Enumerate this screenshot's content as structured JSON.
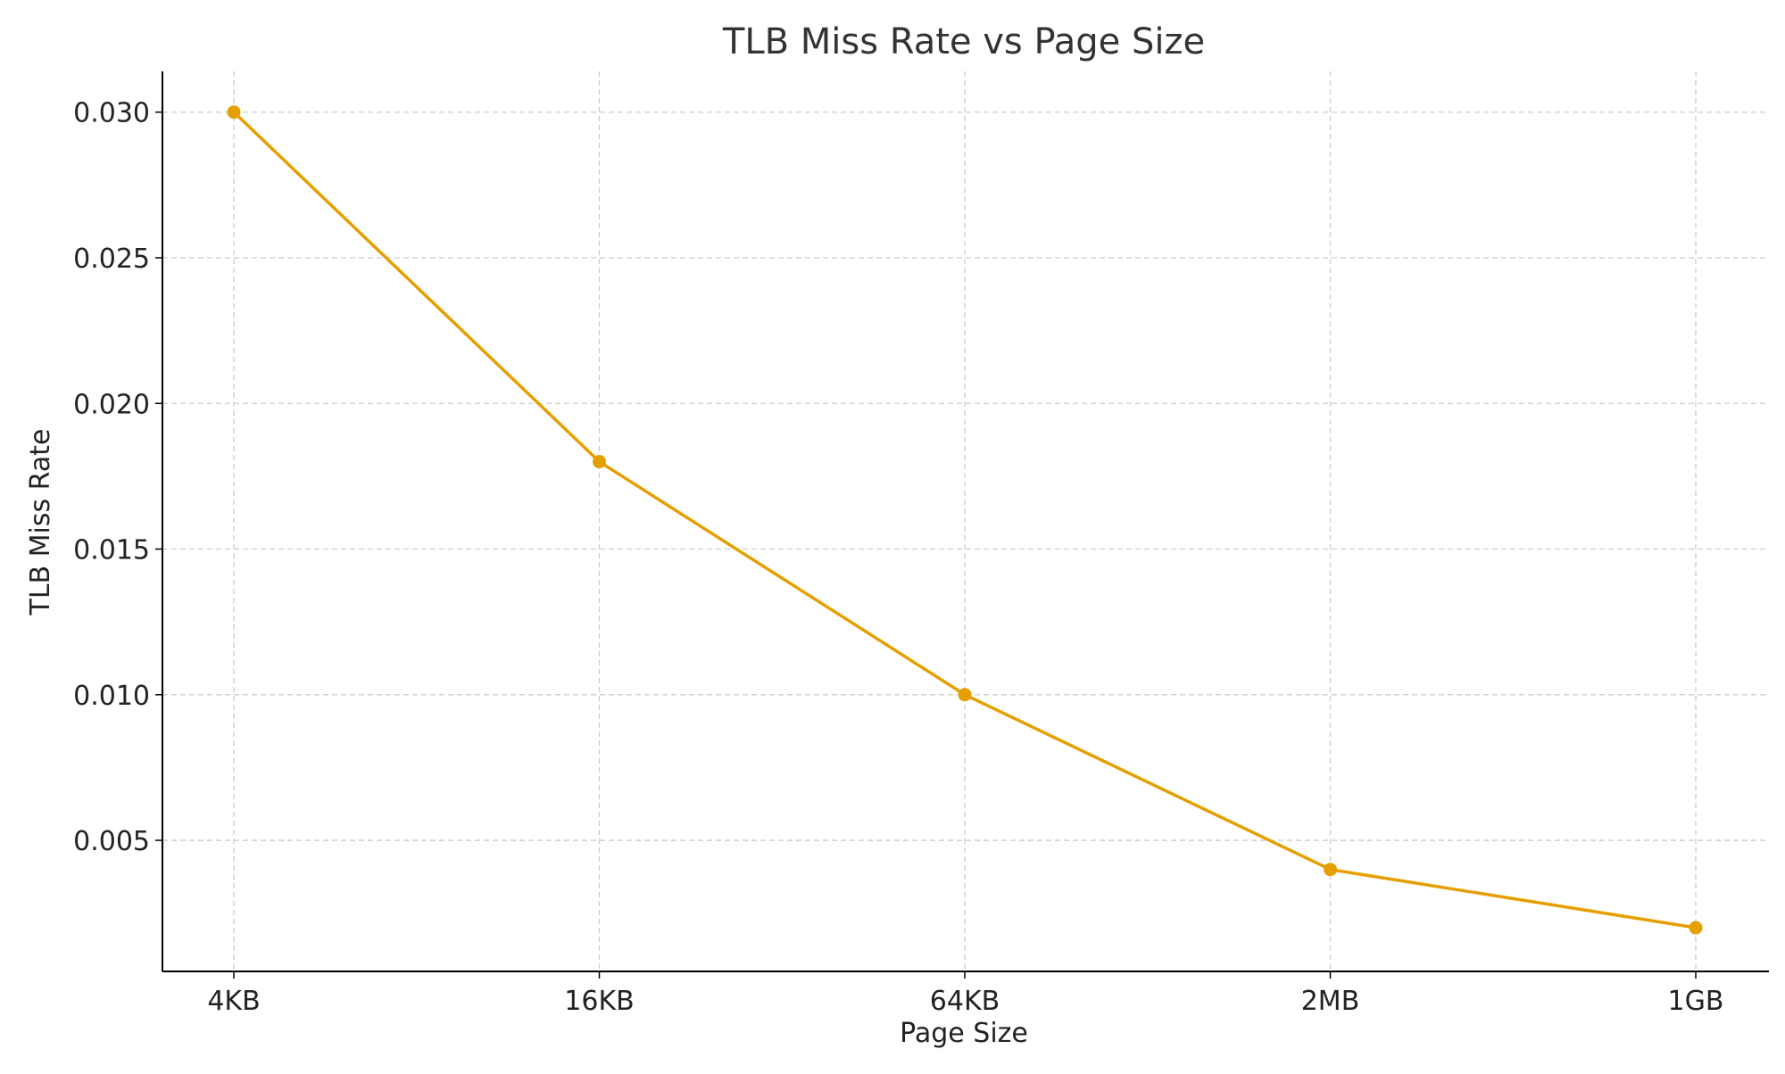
{
  "chart_data": {
    "type": "line",
    "title": "TLB Miss Rate vs Page Size",
    "xlabel": "Page Size",
    "ylabel": "TLB Miss Rate",
    "categories": [
      "4KB",
      "16KB",
      "64KB",
      "2MB",
      "1GB"
    ],
    "series": [
      {
        "values": [
          0.03,
          0.018,
          0.01,
          0.004,
          0.002
        ],
        "color": "#e69f00"
      }
    ],
    "ylim": [
      0.0005,
      0.0314
    ],
    "yticks": [
      0.005,
      0.01,
      0.015,
      0.02,
      0.025,
      0.03
    ],
    "ytick_labels": [
      "0.005",
      "0.010",
      "0.015",
      "0.020",
      "0.025",
      "0.030"
    ],
    "grid": true,
    "grid_style": "dashed",
    "colors": {
      "line": "#e69f00",
      "grid": "#cccccc",
      "axis": "#000000",
      "text": "#222222"
    }
  }
}
